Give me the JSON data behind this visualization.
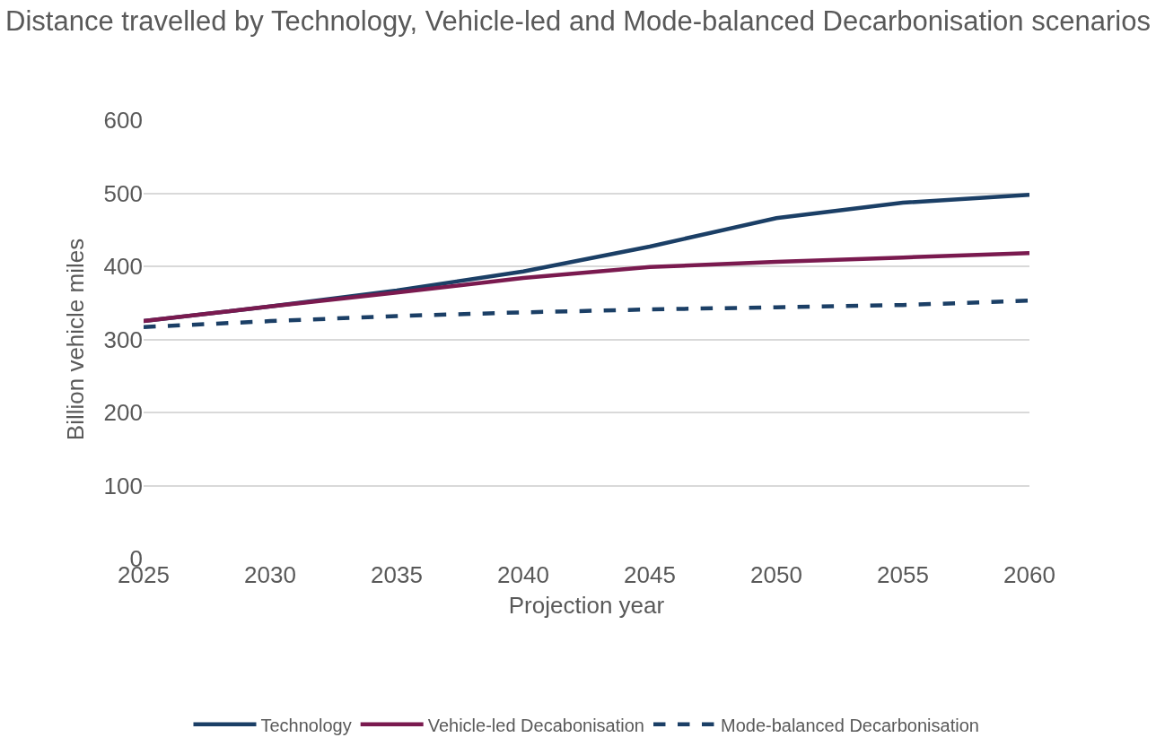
{
  "chart_data": {
    "type": "line",
    "title": "Distance travelled by Technology, Vehicle-led and Mode-balanced Decarbonisation scenarios",
    "xlabel": "Projection year",
    "ylabel": "Billion vehicle miles",
    "x": [
      2025,
      2030,
      2035,
      2040,
      2045,
      2050,
      2055,
      2060
    ],
    "series": [
      {
        "name": "Technology",
        "color": "#1b3f66",
        "line_style": "solid",
        "values": [
          325,
          345,
          367,
          393,
          427,
          466,
          487,
          498
        ]
      },
      {
        "name": "Vehicle-led Decabonisation",
        "color": "#7a1a4f",
        "line_style": "solid",
        "values": [
          325,
          345,
          364,
          384,
          399,
          406,
          412,
          418
        ]
      },
      {
        "name": "Mode-balanced Decarbonisation",
        "color": "#1b3f66",
        "line_style": "dashed",
        "values": [
          317,
          325,
          332,
          337,
          341,
          344,
          347,
          353
        ]
      }
    ],
    "xlim": [
      2025,
      2060
    ],
    "xticks": [
      2025,
      2030,
      2035,
      2040,
      2045,
      2050,
      2055,
      2060
    ],
    "ylim": [
      0,
      600
    ],
    "yticks": [
      0,
      100,
      200,
      300,
      400,
      500,
      600
    ],
    "grid": "y",
    "legend": "bottom",
    "marker": "none"
  }
}
